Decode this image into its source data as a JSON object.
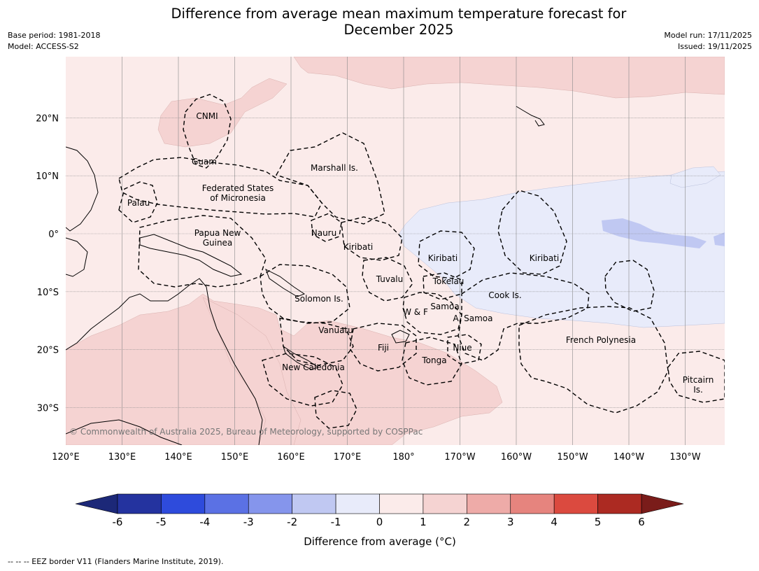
{
  "header": {
    "title_line1": "Difference from average mean maximum temperature forecast for",
    "title_line2": "December 2025",
    "base_period": "Base period: 1981-2018",
    "model": "Model: ACCESS-S2",
    "model_run": "Model run: 17/11/2025",
    "issued": "Issued: 19/11/2025"
  },
  "map": {
    "lat_labels": [
      "20°N",
      "10°N",
      "0°",
      "10°S",
      "20°S",
      "30°S"
    ],
    "lon_labels": [
      "120°E",
      "130°E",
      "140°E",
      "150°E",
      "160°E",
      "170°E",
      "180°",
      "170°W",
      "160°W",
      "150°W",
      "140°W",
      "130°W"
    ],
    "places": [
      {
        "id": "cnmi",
        "lines": [
          "CNMI"
        ]
      },
      {
        "id": "guam",
        "lines": [
          "Guam"
        ]
      },
      {
        "id": "marshall",
        "lines": [
          "Marshall Is."
        ]
      },
      {
        "id": "palau",
        "lines": [
          "Palau"
        ]
      },
      {
        "id": "fsm",
        "lines": [
          "Federated States",
          "of Micronesia"
        ]
      },
      {
        "id": "png",
        "lines": [
          "Papua New",
          "Guinea"
        ]
      },
      {
        "id": "nauru",
        "lines": [
          "Nauru"
        ]
      },
      {
        "id": "kiribati-west",
        "lines": [
          "Kiribati"
        ]
      },
      {
        "id": "kiribati-central",
        "lines": [
          "Kiribati"
        ]
      },
      {
        "id": "kiribati-east",
        "lines": [
          "Kiribati"
        ]
      },
      {
        "id": "tuvalu",
        "lines": [
          "Tuvalu"
        ]
      },
      {
        "id": "tokelau",
        "lines": [
          "Tokelau"
        ]
      },
      {
        "id": "cook",
        "lines": [
          "Cook Is."
        ]
      },
      {
        "id": "solomon",
        "lines": [
          "Solomon Is."
        ]
      },
      {
        "id": "samoa",
        "lines": [
          "Samoa"
        ]
      },
      {
        "id": "wf",
        "lines": [
          "W & F"
        ]
      },
      {
        "id": "asamoa",
        "lines": [
          "A. Samoa"
        ]
      },
      {
        "id": "vanuatu",
        "lines": [
          "Vanuatu"
        ]
      },
      {
        "id": "fiji",
        "lines": [
          "Fiji"
        ]
      },
      {
        "id": "niue",
        "lines": [
          "Niue"
        ]
      },
      {
        "id": "tonga",
        "lines": [
          "Tonga"
        ]
      },
      {
        "id": "newcal",
        "lines": [
          "New Caledonia"
        ]
      },
      {
        "id": "frpoly",
        "lines": [
          "French Polynesia"
        ]
      },
      {
        "id": "pitcairn",
        "lines": [
          "Pitcairn",
          "Is."
        ]
      }
    ],
    "copyright": "© Commonwealth of Australia 2025, Bureau of Meteorology, supported by COSPPac",
    "colors": {
      "ocean_base": "#fbebea",
      "warm_1_2": "#f5d3d2",
      "cool_0_1": "#e8ebfa",
      "cool_1_2": "#c0c8f2",
      "grid": "#888888"
    }
  },
  "colorbar": {
    "ticks": [
      "-6",
      "-5",
      "-4",
      "-3",
      "-2",
      "-1",
      "0",
      "1",
      "2",
      "3",
      "4",
      "5",
      "6"
    ],
    "colors": [
      "#24339f",
      "#2e4bdc",
      "#5b71e4",
      "#8595ec",
      "#c0c8f2",
      "#e8ebfa",
      "#fbebea",
      "#f5d3d2",
      "#eeaba8",
      "#e6847e",
      "#db4a3f",
      "#ac2a22"
    ],
    "under_color": "#1c2878",
    "over_color": "#7a1c1a",
    "label": "Difference from average (°C)"
  },
  "footer": {
    "legend": "--  --  -- EEZ border V11 (Flanders Marine Institute, 2019)."
  }
}
